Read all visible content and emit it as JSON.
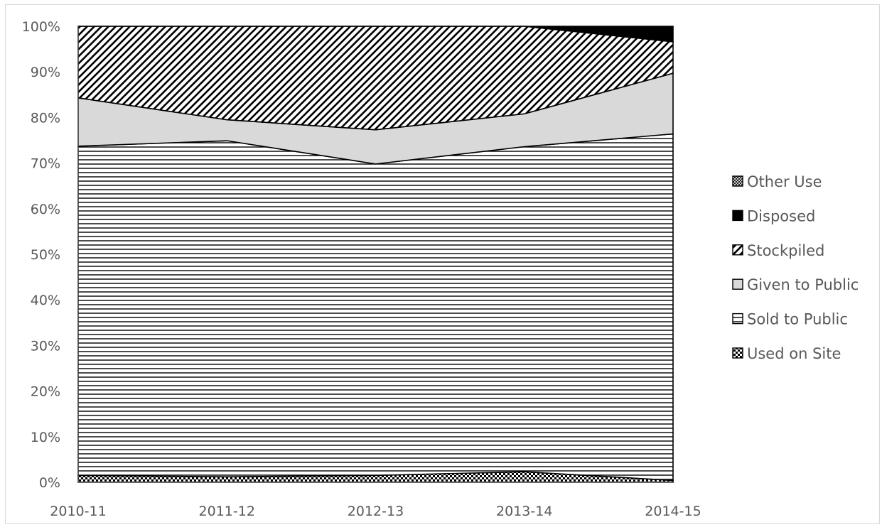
{
  "chart_data": {
    "type": "area",
    "stacked": true,
    "percent": true,
    "title": "",
    "xlabel": "",
    "ylabel": "",
    "categories": [
      "2010-11",
      "2011-12",
      "2012-13",
      "2013-14",
      "2014-15"
    ],
    "ylim": [
      0,
      100
    ],
    "yticks": [
      "0%",
      "10%",
      "20%",
      "30%",
      "40%",
      "50%",
      "60%",
      "70%",
      "80%",
      "90%",
      "100%"
    ],
    "grid": false,
    "legend_position": "right",
    "series": [
      {
        "name": "Used on Site",
        "pattern": "checker",
        "values": [
          1.5,
          1.2,
          1.5,
          2.3,
          0.4
        ]
      },
      {
        "name": "Sold to Public",
        "pattern": "horizontal-lines",
        "values": [
          72.2,
          73.7,
          68.3,
          71.3,
          76.0
        ]
      },
      {
        "name": "Given to Public",
        "pattern": "solid-gray",
        "values": [
          10.6,
          4.6,
          7.5,
          7.2,
          13.3
        ]
      },
      {
        "name": "Stockpiled",
        "pattern": "diagonal-lines",
        "values": [
          15.7,
          20.5,
          22.7,
          19.2,
          6.9
        ]
      },
      {
        "name": "Disposed",
        "pattern": "solid-black",
        "values": [
          0,
          0,
          0,
          0,
          3.4
        ]
      },
      {
        "name": "Other Use",
        "pattern": "crosshatch",
        "values": [
          0,
          0,
          0,
          0,
          0
        ]
      }
    ],
    "legend_order": [
      "Other Use",
      "Disposed",
      "Stockpiled",
      "Given to Public",
      "Sold to Public",
      "Used on Site"
    ],
    "colors": {
      "axis": "#595959",
      "text": "#595959",
      "fill_gray": "#d9d9d9",
      "ink": "#000000"
    }
  }
}
